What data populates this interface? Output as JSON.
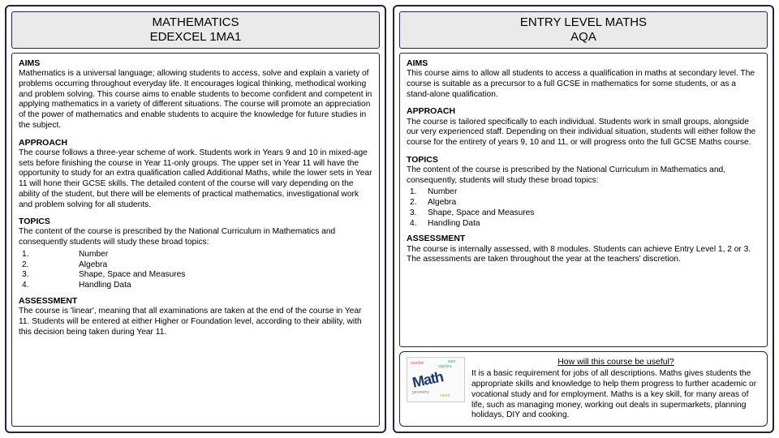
{
  "left": {
    "title1": "MATHEMATICS",
    "title2": "EDEXCEL 1MA1",
    "aims_h": "AIMS",
    "aims_p": "Mathematics is a universal language; allowing students to access, solve and explain a variety of problems occurring throughout everyday life. It encourages logical thinking, methodical working and problem solving. This course aims to enable students to become confident and competent in applying mathematics in a variety of different situations.  The course will promote an appreciation of the power of mathematics and enable students to acquire the knowledge for future studies in the subject.",
    "approach_h": "APPROACH",
    "approach_p": "The course follows a three-year scheme of work.  Students work in Years 9 and 10 in mixed-age sets before finishing the course in Year 11-only groups. The upper set in Year 11 will have the opportunity to study for an extra qualification called Additional Maths, while the lower sets in Year 11 will hone their GCSE skills.  The detailed content of the course will vary depending on the ability of the student, but there will be elements of practical mathematics, investigational work and problem solving for all students.",
    "topics_h": "TOPICS",
    "topics_intro": "The content of the course is prescribed by the National Curriculum in Mathematics and consequently students will study these broad topics:",
    "topics": [
      {
        "n": "1.",
        "t": "Number"
      },
      {
        "n": "2.",
        "t": "Algebra"
      },
      {
        "n": "3.",
        "t": "Shape, Space and Measures"
      },
      {
        "n": "4.",
        "t": "Handling Data"
      }
    ],
    "assess_h": "ASSESSMENT",
    "assess_p": "The course is 'linear', meaning that all examinations are taken at the end of the course in Year 11. Students will be entered at either Higher or Foundation level, according to their ability, with this decision being taken during Year 11."
  },
  "right": {
    "title1": "ENTRY LEVEL MATHS",
    "title2": "AQA",
    "aims_h": "AIMS",
    "aims_p": "This course aims to allow all students to access a qualification in maths at secondary level. The course is suitable as a precursor to a full GCSE in mathematics for some students, or as a stand-alone qualification.",
    "approach_h": "APPROACH",
    "approach_p": "The course is tailored specifically to each individual. Students work in small groups, alongside our very experienced staff. Depending on their individual situation, students will either follow the course for the entirety of years 9, 10 and 11, or will progress onto the full GCSE Maths course.",
    "topics_h": "TOPICS",
    "topics_intro": "The content of the course is prescribed by the National Curriculum in Mathematics and, consequently, students will study these broad topics:",
    "topics": [
      {
        "n": "1.",
        "t": "Number"
      },
      {
        "n": "2.",
        "t": "Algebra"
      },
      {
        "n": "3.",
        "t": "Shape, Space and Measures"
      },
      {
        "n": "4.",
        "t": "Handling Data"
      }
    ],
    "assess_h": "ASSESSMENT",
    "assess_p": "The course is internally assessed, with 8 modules. Students can achieve Entry Level 1, 2 or 3. The assessments are taken throughout the year at the teachers' discretion.",
    "useful_h": "How will this course be useful?",
    "useful_p": "It is a basic requirement for jobs of all descriptions.  Maths gives students the appropriate skills and knowledge to help them progress to further academic or vocational study and for employment. Maths is a key skill, for many areas of life, such as managing money, working out deals in supermarkets, planning holidays, DIY and cooking.",
    "wc_main": "Math"
  }
}
